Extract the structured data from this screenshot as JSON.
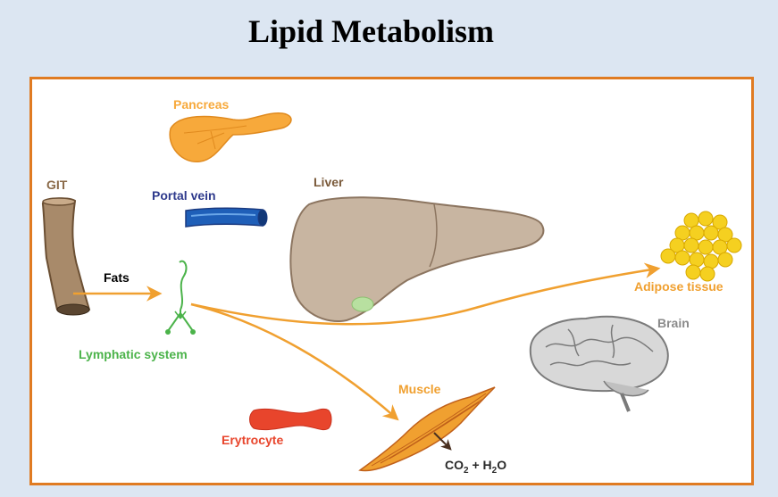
{
  "title": "Lipid Metabolism",
  "labels": {
    "pancreas": "Pancreas",
    "git": "GIT",
    "portal_vein": "Portal vein",
    "liver": "Liver",
    "fats": "Fats",
    "lymphatic_system": "Lymphatic system",
    "adipose_tissue": "Adipose tissue",
    "brain": "Brain",
    "muscle": "Muscle",
    "erytrocyte": "Erytrocyte",
    "products": {
      "co": "CO",
      "co_sub": "2",
      "plus": " + H",
      "h_sub": "2",
      "o": "O"
    }
  },
  "colors": {
    "frame": "#e07b22",
    "pancreas": "#f7a93b",
    "git": "#8b6b4a",
    "portal_vein": "#2e3a8c",
    "liver": "#c8b5a1",
    "lymphatic": "#4bb34a",
    "adipose": "#f5c518",
    "brain": "#8a8a8a",
    "muscle": "#e8901e",
    "erytrocyte": "#e8452c",
    "arrow": "#f0a030"
  }
}
